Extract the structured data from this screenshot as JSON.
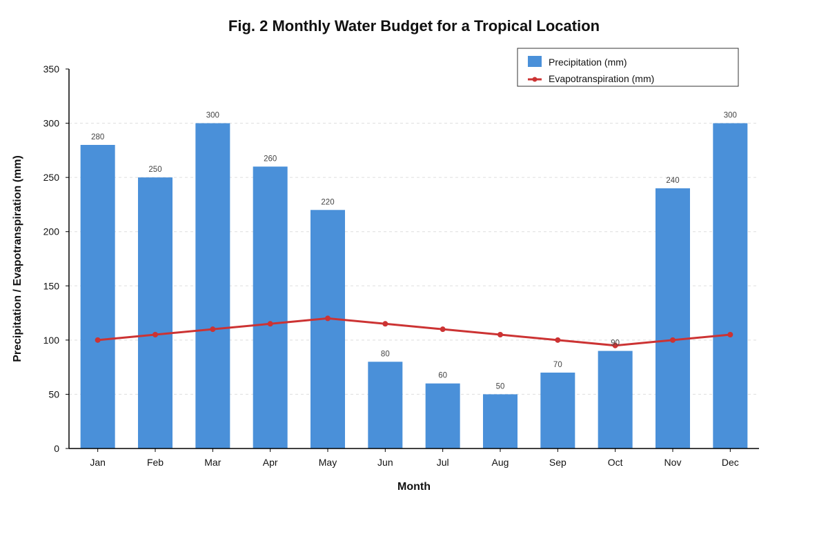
{
  "chart_data": {
    "type": "bar",
    "title": "Fig. 2 Monthly Water Budget for a Tropical Location",
    "xlabel": "Month",
    "ylabel": "Precipitation / Evapotranspiration (mm)",
    "ylim": [
      0,
      350
    ],
    "yticks": [
      0,
      50,
      100,
      150,
      200,
      250,
      300,
      350
    ],
    "categories": [
      "Jan",
      "Feb",
      "Mar",
      "Apr",
      "May",
      "Jun",
      "Jul",
      "Aug",
      "Sep",
      "Oct",
      "Nov",
      "Dec"
    ],
    "series": [
      {
        "name": "Precipitation (mm)",
        "type": "bar",
        "color": "#4a90d9",
        "values": [
          280,
          250,
          300,
          260,
          220,
          80,
          60,
          50,
          70,
          90,
          240,
          300
        ]
      },
      {
        "name": "Evapotranspiration (mm)",
        "type": "line",
        "color": "#cc3333",
        "values": [
          100,
          105,
          110,
          115,
          120,
          115,
          110,
          105,
          100,
          95,
          100,
          105
        ]
      }
    ],
    "data_labels": "bars",
    "grid": true,
    "legend_position": "top-right"
  }
}
